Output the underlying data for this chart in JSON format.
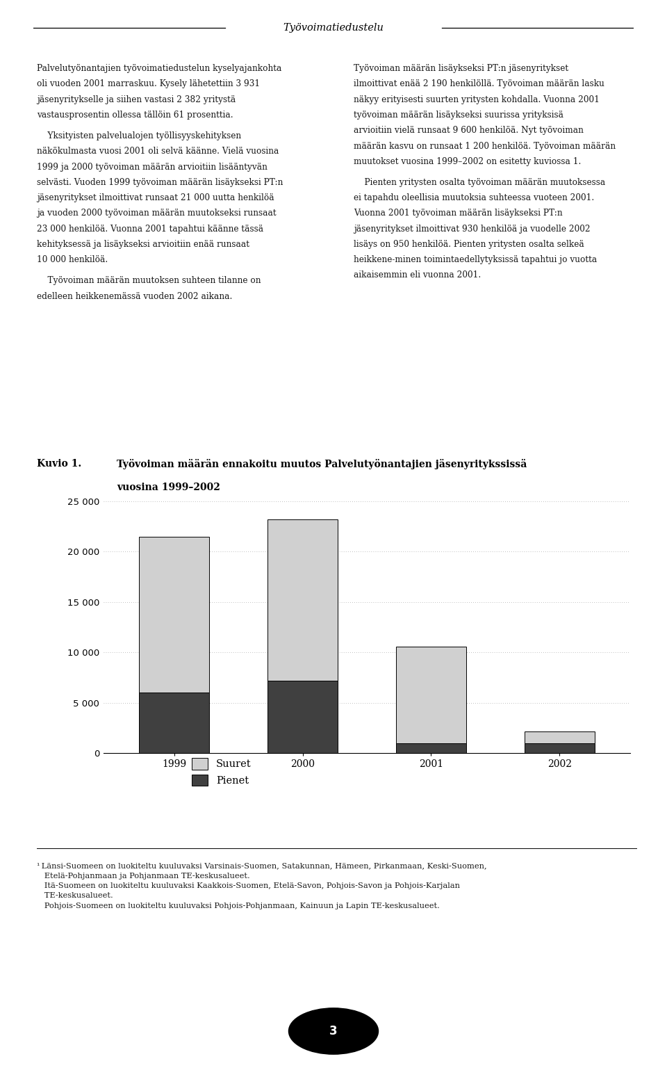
{
  "header_title": "Työvoimatiedustelu",
  "categories": [
    "1999",
    "2000",
    "2001",
    "2002"
  ],
  "suuret": [
    15500,
    16000,
    9600,
    1200
  ],
  "pienet": [
    6000,
    7200,
    930,
    950
  ],
  "color_suuret": "#d0d0d0",
  "color_pienet": "#404040",
  "color_edge": "#000000",
  "ylim": [
    0,
    26000
  ],
  "yticks": [
    0,
    5000,
    10000,
    15000,
    20000,
    25000
  ],
  "bar_width": 0.55,
  "legend_suuret": "Suuret",
  "legend_pienet": "Pienet",
  "kuvio_label": "Kuvio 1.",
  "chart_title_line1": "Työvoiman määrän ennakoitu muutos Palveletyönantajien jäsenyrityksisä",
  "chart_title_line2": "vuosina 1999–2002",
  "left_col_text": [
    "Palvelutyönantajien työvoimatiedustelun kyselyajankohta oli vuoden 2001 marraskuu. Kysely lähetettiin 3 931 jäsenyritykselle ja siihen vastasi 2 382 yritystä vastausprosentin ollessa tällöin 61 prosenttia.",
    "    Yksityisten palvelualojen työllisyyskehityksen näkökulmasta vuosi 2001 oli selvä käänne. Vielä vuosina 1999 ja 2000 työvoiman määrän arvioitiin lisääntyvän selvästi. Vuoden 1999 työvoiman määrän lisäykseksi PT:n jäsenyritykset ilmoittivat runsaat 21 000 uutta henkilöä ja vuoden 2000 työvoiman määrän muutokseksi runsaat 23 000 henkilöä. Vuonna 2001 tapahtui käänne tässä kehityksessä ja lisäykseksi arvioitiin enää runsaat 10 000 henkilöä.",
    "    Työvoiman määrän muutoksen suhteen tilanne on edelleen heikkenemässä vuoden 2002 aikana."
  ],
  "right_col_text": [
    "Työvoiman määrän lisäykseksi PT:n jäsenyritykset ilmoittivat enää 2 190 henkilöllä. Työvoiman määrän lasku näkyy erityisesti suurten yritysten kohdalla. Vuonna 2001 työvoiman määrän lisäykseksi suurissa yrityksisä arvioitiin vielä runsaat 9 600 henkilöä. Nyt työvoiman määrän kasvu on runsaat 1 200 henkilöä. Työvoiman määrän muutokset vuosina 1999–2002 on esitetty kuviossa 1.",
    "    Pienten yritysten osalta työvoiman määrän muutoksessa ei tapahdu oleellisia muutoksia suhteessa vuoteen 2001. Vuonna 2001 työvoiman määrän lisäykseksi PT:n jäsenyritykset ilmoittivat 930 henkilöä ja vuodelle 2002 lisäys on 950 henkilöä. Pienten yritysten osalta selkeä heikkene-minen toimintaedellytyksissä tapahtui jo vuotta aikaisemmin eli vuonna 2001."
  ],
  "footnote_lines": [
    "¹ Länsi-Suomeen on luokiteltu kuuluvaksi Varsinais-Suomen, Satakunnan, Hämeen, Pirkanmaan, Keski-Suomen,",
    "   Etelä-Pohjanmaan ja Pohjanmaan TE-keskusalueet.",
    "   Itä-Suomeen on luokiteltu kuuluvaksi Kaakkois-Suomen, Etelä-Savon, Pohjois-Savon ja Pohjois-Karjalan",
    "   TE-keskusalueet.",
    "   Pohjois-Suomeen on luokiteltu kuuluvaksi Pohjois-Pohjanmaan, Kainuun ja Lapin TE-keskusalueet."
  ],
  "page_number": "3",
  "background_color": "#ffffff",
  "text_color": "#1a1a1a",
  "grid_color": "#999999"
}
